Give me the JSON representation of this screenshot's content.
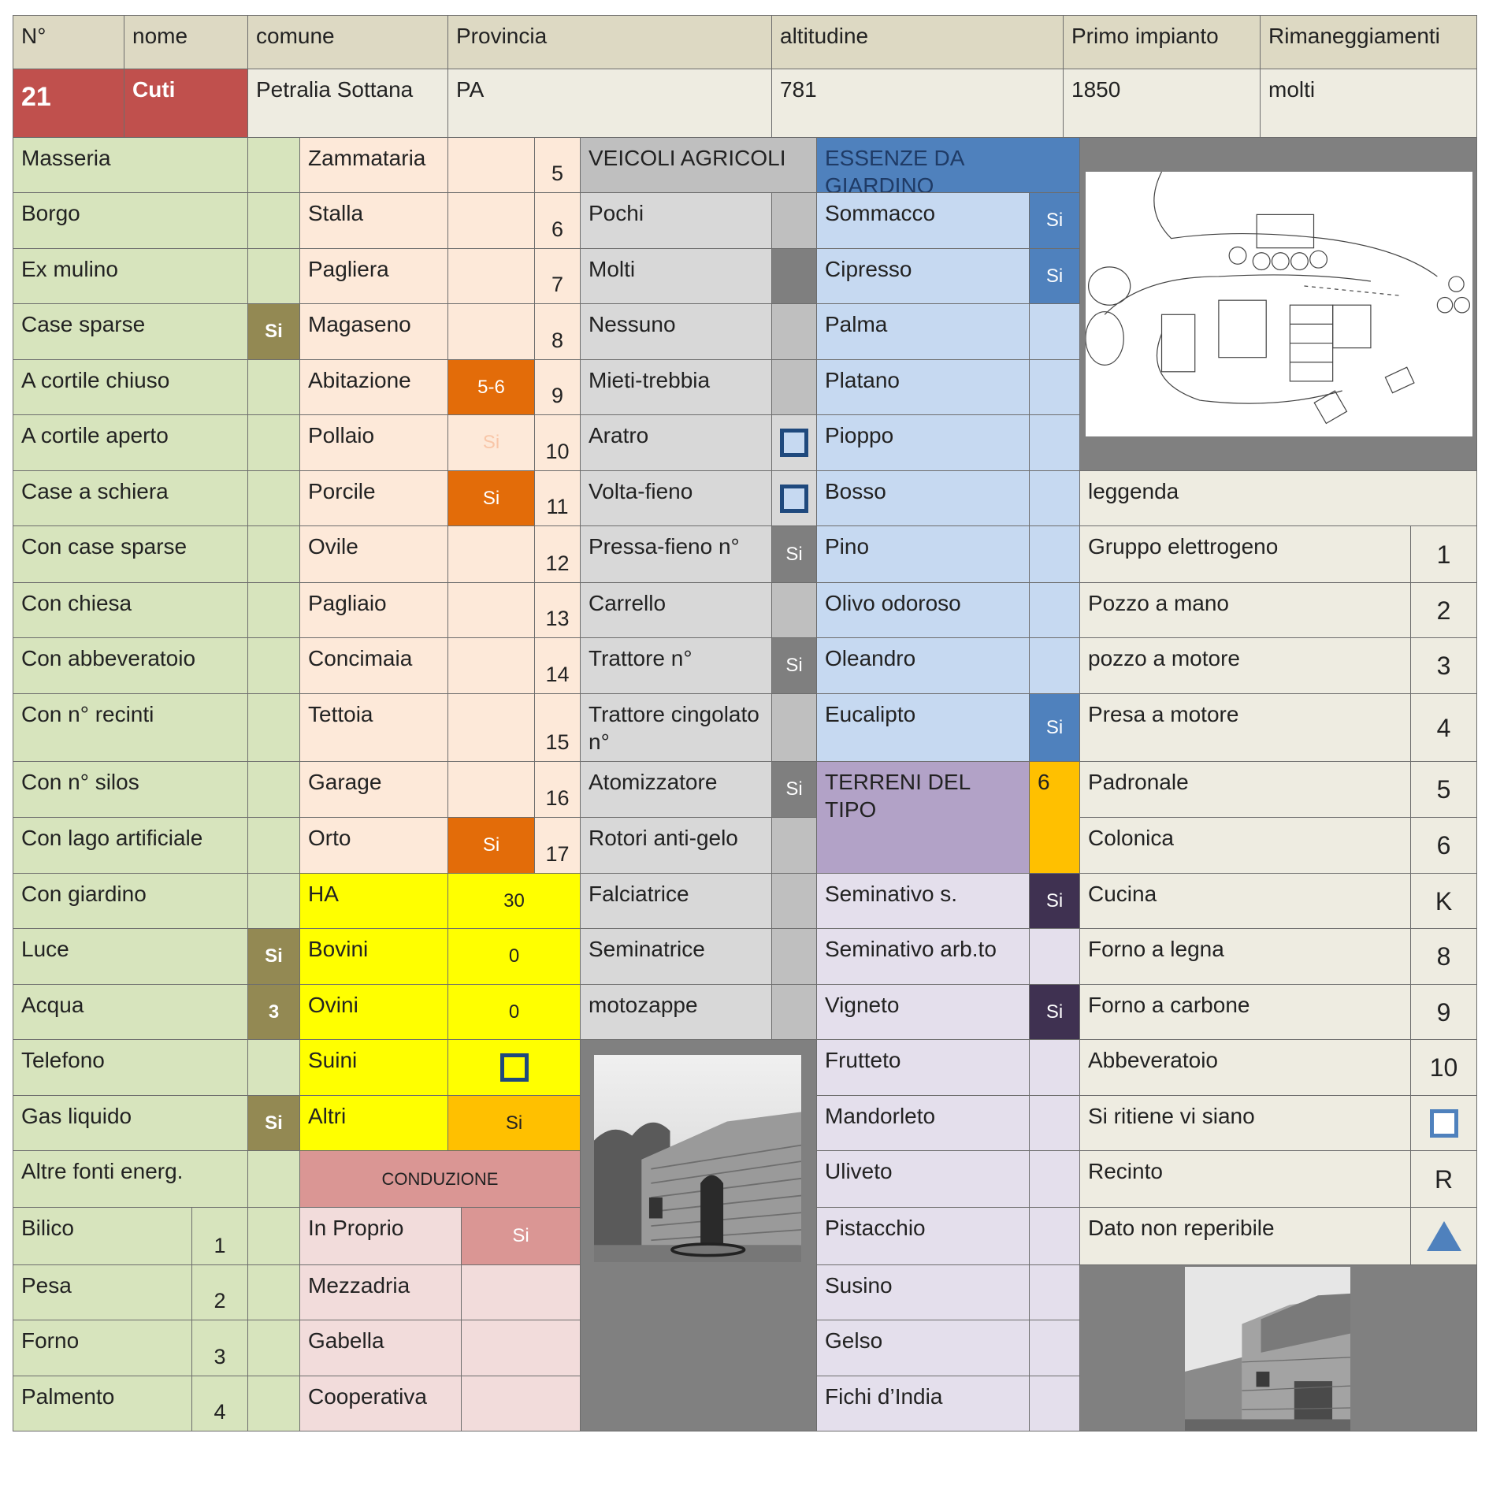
{
  "header": {
    "labels": [
      "N°",
      "nome",
      "comune",
      "Provincia",
      "altitudine",
      "Primo impianto",
      "Rimaneggiamenti"
    ],
    "values": {
      "numero": "21",
      "nome": "Cuti",
      "comune": "Petralia Sottana",
      "provincia": "PA",
      "altitudine": "781",
      "primo_impianto": "1850",
      "rimaneggiamenti": "molti"
    }
  },
  "tipologia": [
    {
      "label": "Masseria",
      "value": ""
    },
    {
      "label": "Borgo",
      "value": ""
    },
    {
      "label": "Ex mulino",
      "value": ""
    },
    {
      "label": "Case sparse",
      "value": "Si"
    },
    {
      "label": "A cortile chiuso",
      "value": ""
    },
    {
      "label": "A cortile aperto",
      "value": ""
    },
    {
      "label": "Case a schiera",
      "value": ""
    },
    {
      "label": "Con case sparse",
      "value": ""
    },
    {
      "label": "Con chiesa",
      "value": ""
    },
    {
      "label": "Con abbeveratoio",
      "value": ""
    },
    {
      "label": "Con n° recinti",
      "value": ""
    },
    {
      "label": "Con n° silos",
      "value": ""
    },
    {
      "label": "Con lago artificiale",
      "value": ""
    },
    {
      "label": "Con giardino",
      "value": ""
    },
    {
      "label": "Luce",
      "value": "Si"
    },
    {
      "label": "Acqua",
      "value": "3"
    },
    {
      "label": "Telefono",
      "value": ""
    },
    {
      "label": "Gas liquido",
      "value": "Si"
    },
    {
      "label": "Altre fonti energ.",
      "value": ""
    }
  ],
  "strutture_extra": [
    {
      "label": "Bilico",
      "num": "1"
    },
    {
      "label": "Pesa",
      "num": "2"
    },
    {
      "label": "Forno",
      "num": "3"
    },
    {
      "label": "Palmento",
      "num": "4"
    }
  ],
  "ambienti": [
    {
      "label": "Zammataria",
      "value": "",
      "num": "5"
    },
    {
      "label": "Stalla",
      "value": "",
      "num": "6"
    },
    {
      "label": "Pagliera",
      "value": "",
      "num": "7"
    },
    {
      "label": "Magaseno",
      "value": "",
      "num": "8"
    },
    {
      "label": "Abitazione",
      "value": "5-6",
      "num": "9"
    },
    {
      "label": "Pollaio",
      "value": "Si",
      "num": "10"
    },
    {
      "label": "Porcile",
      "value": "Si",
      "num": "11"
    },
    {
      "label": "Ovile",
      "value": "",
      "num": "12"
    },
    {
      "label": "Pagliaio",
      "value": "",
      "num": "13"
    },
    {
      "label": "Concimaia",
      "value": "",
      "num": "14"
    },
    {
      "label": "Tettoia",
      "value": "",
      "num": "15"
    },
    {
      "label": "Garage",
      "value": "",
      "num": "16"
    },
    {
      "label": "Orto",
      "value": "Si",
      "num": "17"
    }
  ],
  "allevamento": [
    {
      "label": "HA",
      "value": "30"
    },
    {
      "label": "Bovini",
      "value": "0"
    },
    {
      "label": "Ovini",
      "value": "0"
    },
    {
      "label": "Suini",
      "value": "",
      "icon": "probable-square-icon"
    },
    {
      "label": "Altri",
      "value": "Si"
    }
  ],
  "conduzione": {
    "title": "CONDUZIONE",
    "rows": [
      {
        "label": "In Proprio",
        "value": "Si"
      },
      {
        "label": "Mezzadria",
        "value": ""
      },
      {
        "label": "Gabella",
        "value": ""
      },
      {
        "label": "Cooperativa",
        "value": ""
      }
    ]
  },
  "veicoli": {
    "title": "VEICOLI AGRICOLI",
    "rows": [
      {
        "label": "Pochi",
        "value": ""
      },
      {
        "label": "Molti",
        "value": ""
      },
      {
        "label": "Nessuno",
        "value": ""
      },
      {
        "label": "Mieti-trebbia",
        "value": ""
      },
      {
        "label": "Aratro",
        "value": "",
        "icon": "probable-square-icon"
      },
      {
        "label": "Volta-fieno",
        "value": "",
        "icon": "probable-square-icon"
      },
      {
        "label": "Pressa-fieno n°",
        "value": "Si"
      },
      {
        "label": "Carrello",
        "value": ""
      },
      {
        "label": "Trattore n°",
        "value": "Si"
      },
      {
        "label": "Trattore cingolato n°",
        "value": ""
      },
      {
        "label": "Atomizzatore",
        "value": "Si"
      },
      {
        "label": "Rotori anti-gelo",
        "value": ""
      },
      {
        "label": "Falciatrice",
        "value": ""
      },
      {
        "label": "Seminatrice",
        "value": ""
      },
      {
        "label": "motozappe",
        "value": ""
      }
    ]
  },
  "essenze": {
    "title": "ESSENZE DA GIARDINO",
    "rows": [
      {
        "label": "Sommacco",
        "value": "Si"
      },
      {
        "label": "Cipresso",
        "value": "Si"
      },
      {
        "label": "Palma",
        "value": ""
      },
      {
        "label": "Platano",
        "value": ""
      },
      {
        "label": "Pioppo",
        "value": ""
      },
      {
        "label": "Bosso",
        "value": ""
      },
      {
        "label": "Pino",
        "value": ""
      },
      {
        "label": "Olivo odoroso",
        "value": ""
      },
      {
        "label": "Oleandro",
        "value": ""
      },
      {
        "label": "Eucalipto",
        "value": "Si"
      }
    ]
  },
  "terreni": {
    "title": "TERRENI DEL TIPO",
    "value": "6",
    "rows": [
      {
        "label": "Seminativo s.",
        "value": "Si"
      },
      {
        "label": "Seminativo arb.to",
        "value": ""
      },
      {
        "label": "Vigneto",
        "value": "Si"
      },
      {
        "label": "Frutteto",
        "value": ""
      },
      {
        "label": "Mandorleto",
        "value": ""
      },
      {
        "label": "Uliveto",
        "value": ""
      },
      {
        "label": "Pistacchio",
        "value": ""
      },
      {
        "label": "Susino",
        "value": ""
      },
      {
        "label": "Gelso",
        "value": ""
      },
      {
        "label": "Fichi d’India",
        "value": ""
      }
    ]
  },
  "legenda": {
    "title": "leggenda",
    "rows": [
      {
        "label": "Gruppo elettrogeno",
        "symbol": "1"
      },
      {
        "label": "Pozzo a mano",
        "symbol": "2"
      },
      {
        "label": "pozzo a motore",
        "symbol": "3"
      },
      {
        "label": "Presa a motore",
        "symbol": "4"
      },
      {
        "label": "Padronale",
        "symbol": "5"
      },
      {
        "label": "Colonica",
        "symbol": "6"
      },
      {
        "label": "Cucina",
        "symbol": "K"
      },
      {
        "label": "Forno a legna",
        "symbol": "8"
      },
      {
        "label": "Forno a carbone",
        "symbol": "9"
      },
      {
        "label": "Abbeveratoio",
        "symbol": "10"
      },
      {
        "label": "Si ritiene vi siano",
        "symbol": "",
        "icon": "blue-square-icon"
      },
      {
        "label": "Recinto",
        "symbol": "R"
      },
      {
        "label": "Dato non reperibile",
        "symbol": "",
        "icon": "blue-triangle-icon"
      }
    ]
  },
  "colors": {
    "header": "#ddd9c3",
    "id_red": "#c0504d",
    "olive": "#938953",
    "orange": "#e36c09",
    "blue": "#4f81bd",
    "dark_purple": "#3f3151",
    "amber": "#ffc000",
    "yellow": "#ffff00"
  }
}
